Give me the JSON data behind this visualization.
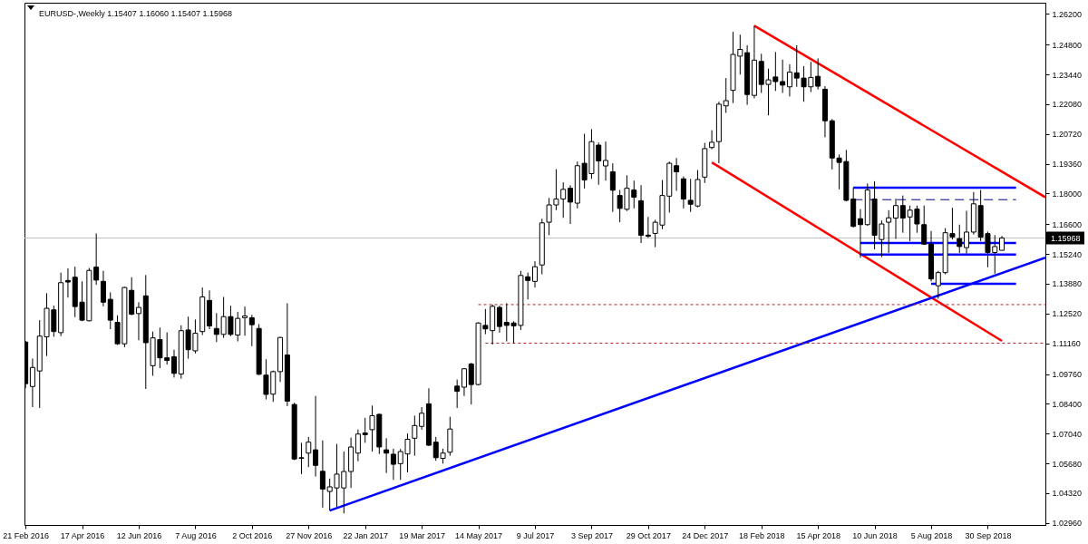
{
  "chart_data": {
    "type": "candlestick",
    "title": "EURUSD-,Weekly 1.15407 1.16060 1.15407 1.15968",
    "color": "#000000",
    "x": [
      "2016-02-21",
      "2016-02-28",
      "2016-03-06",
      "2016-03-13",
      "2016-03-20",
      "2016-03-27",
      "2016-04-03",
      "2016-04-10",
      "2016-04-17",
      "2016-04-24",
      "2016-05-01",
      "2016-05-08",
      "2016-05-15",
      "2016-05-22",
      "2016-05-29",
      "2016-06-05",
      "2016-06-12",
      "2016-06-19",
      "2016-06-26",
      "2016-07-03",
      "2016-07-10",
      "2016-07-17",
      "2016-07-24",
      "2016-07-31",
      "2016-08-07",
      "2016-08-14",
      "2016-08-21",
      "2016-08-28",
      "2016-09-04",
      "2016-09-11",
      "2016-09-18",
      "2016-09-25",
      "2016-10-02",
      "2016-10-09",
      "2016-10-16",
      "2016-10-23",
      "2016-10-30",
      "2016-11-06",
      "2016-11-13",
      "2016-11-20",
      "2016-11-27",
      "2016-12-04",
      "2016-12-11",
      "2016-12-18",
      "2016-12-25",
      "2017-01-01",
      "2017-01-08",
      "2017-01-15",
      "2017-01-22",
      "2017-01-29",
      "2017-02-05",
      "2017-02-12",
      "2017-02-19",
      "2017-02-26",
      "2017-03-05",
      "2017-03-12",
      "2017-03-19",
      "2017-03-26",
      "2017-04-02",
      "2017-04-09",
      "2017-04-16",
      "2017-04-23",
      "2017-04-30",
      "2017-05-07",
      "2017-05-14",
      "2017-05-21",
      "2017-05-28",
      "2017-06-04",
      "2017-06-11",
      "2017-06-18",
      "2017-06-25",
      "2017-07-02",
      "2017-07-09",
      "2017-07-16",
      "2017-07-23",
      "2017-07-30",
      "2017-08-06",
      "2017-08-13",
      "2017-08-20",
      "2017-08-27",
      "2017-09-03",
      "2017-09-10",
      "2017-09-17",
      "2017-09-24",
      "2017-10-01",
      "2017-10-08",
      "2017-10-15",
      "2017-10-22",
      "2017-10-29",
      "2017-11-05",
      "2017-11-12",
      "2017-11-19",
      "2017-11-26",
      "2017-12-03",
      "2017-12-10",
      "2017-12-17",
      "2017-12-24",
      "2017-12-31",
      "2018-01-07",
      "2018-01-14",
      "2018-01-21",
      "2018-01-28",
      "2018-02-04",
      "2018-02-11",
      "2018-02-18",
      "2018-02-25",
      "2018-03-04",
      "2018-03-11",
      "2018-03-18",
      "2018-03-25",
      "2018-04-01",
      "2018-04-08",
      "2018-04-15",
      "2018-04-22",
      "2018-04-29",
      "2018-05-06",
      "2018-05-13",
      "2018-05-20",
      "2018-05-27",
      "2018-06-03",
      "2018-06-10",
      "2018-06-17",
      "2018-06-24",
      "2018-07-01",
      "2018-07-08",
      "2018-07-15",
      "2018-07-22",
      "2018-07-29",
      "2018-08-05",
      "2018-08-12",
      "2018-08-19",
      "2018-08-26",
      "2018-09-02",
      "2018-09-09",
      "2018-09-16",
      "2018-09-23",
      "2018-09-30",
      "2018-10-07",
      "2018-10-14"
    ],
    "ohlc": [
      [
        1.1122,
        1.1127,
        1.0911,
        1.0932
      ],
      [
        1.0919,
        1.1047,
        1.0825,
        1.1006
      ],
      [
        1.099,
        1.1222,
        1.0821,
        1.1149
      ],
      [
        1.1146,
        1.1345,
        1.1058,
        1.1276
      ],
      [
        1.1269,
        1.1288,
        1.1146,
        1.117
      ],
      [
        1.1165,
        1.1439,
        1.1149,
        1.1393
      ],
      [
        1.1403,
        1.1458,
        1.1325,
        1.1396
      ],
      [
        1.1418,
        1.1466,
        1.1236,
        1.1284
      ],
      [
        1.1304,
        1.1399,
        1.1217,
        1.1222
      ],
      [
        1.1219,
        1.146,
        1.1217,
        1.1449
      ],
      [
        1.1464,
        1.1618,
        1.1383,
        1.1405
      ],
      [
        1.1399,
        1.1447,
        1.1285,
        1.1304
      ],
      [
        1.1317,
        1.1349,
        1.1181,
        1.1222
      ],
      [
        1.1212,
        1.1244,
        1.1109,
        1.1114
      ],
      [
        1.1114,
        1.1374,
        1.1098,
        1.1371
      ],
      [
        1.1358,
        1.1418,
        1.1244,
        1.1249
      ],
      [
        1.1252,
        1.1304,
        1.113,
        1.128
      ],
      [
        1.1333,
        1.1428,
        1.0908,
        1.1119
      ],
      [
        1.1014,
        1.117,
        1.0968,
        1.1141
      ],
      [
        1.1133,
        1.1188,
        1.1003,
        1.105
      ],
      [
        1.105,
        1.1166,
        1.1019,
        1.1038
      ],
      [
        1.1055,
        1.1087,
        1.096,
        1.0979
      ],
      [
        1.0976,
        1.1198,
        1.0955,
        1.1174
      ],
      [
        1.1177,
        1.1238,
        1.1046,
        1.1087
      ],
      [
        1.1082,
        1.1225,
        1.107,
        1.1162
      ],
      [
        1.117,
        1.1371,
        1.1154,
        1.1328
      ],
      [
        1.1312,
        1.1358,
        1.1181,
        1.1196
      ],
      [
        1.1184,
        1.1254,
        1.1122,
        1.1157
      ],
      [
        1.1157,
        1.1328,
        1.1141,
        1.1238
      ],
      [
        1.1238,
        1.1288,
        1.1149,
        1.1157
      ],
      [
        1.1154,
        1.126,
        1.1125,
        1.123
      ],
      [
        1.1233,
        1.1284,
        1.1151,
        1.1241
      ],
      [
        1.1233,
        1.1246,
        1.1103,
        1.1201
      ],
      [
        1.1184,
        1.1204,
        1.0971,
        1.0975
      ],
      [
        1.0971,
        1.1043,
        1.086,
        1.0883
      ],
      [
        1.0884,
        1.0992,
        1.0849,
        1.0987
      ],
      [
        1.0987,
        1.1145,
        1.094,
        1.1143
      ],
      [
        1.1063,
        1.1299,
        1.0829,
        1.0852
      ],
      [
        1.0837,
        1.0845,
        1.0583,
        1.0588
      ],
      [
        1.0594,
        1.0662,
        1.0519,
        1.0591
      ],
      [
        1.0615,
        1.0689,
        1.0551,
        1.0665
      ],
      [
        1.063,
        1.0876,
        1.0508,
        1.0559
      ],
      [
        1.0532,
        1.0673,
        1.0366,
        1.0451
      ],
      [
        1.044,
        1.0499,
        1.0353,
        1.0461
      ],
      [
        1.0456,
        1.0657,
        1.0369,
        1.0519
      ],
      [
        1.0456,
        1.0622,
        1.034,
        1.0531
      ],
      [
        1.0531,
        1.0686,
        1.0456,
        1.0643
      ],
      [
        1.0615,
        1.0723,
        1.0578,
        1.0702
      ],
      [
        1.0707,
        1.0776,
        1.0662,
        1.0699
      ],
      [
        1.0722,
        1.0832,
        1.0622,
        1.0786
      ],
      [
        1.0792,
        1.0795,
        1.0611,
        1.0643
      ],
      [
        1.063,
        1.0683,
        1.0524,
        1.0615
      ],
      [
        1.061,
        1.0635,
        1.0493,
        1.0564
      ],
      [
        1.0567,
        1.0634,
        1.0493,
        1.0622
      ],
      [
        1.0611,
        1.0705,
        1.0527,
        1.0678
      ],
      [
        1.0683,
        1.0786,
        1.0603,
        1.0741
      ],
      [
        1.0737,
        1.0825,
        1.0722,
        1.0797
      ],
      [
        1.084,
        1.0911,
        1.0648,
        1.0651
      ],
      [
        1.0665,
        1.0689,
        1.058,
        1.0594
      ],
      [
        1.0591,
        1.0635,
        1.0567,
        1.0615
      ],
      [
        1.0619,
        1.0781,
        1.0603,
        1.0725
      ],
      [
        1.0921,
        1.0951,
        1.0821,
        1.0897
      ],
      [
        1.0916,
        1.1003,
        1.0876,
        1.1
      ],
      [
        1.1022,
        1.1027,
        1.0837,
        1.0928
      ],
      [
        1.0928,
        1.1212,
        1.0924,
        1.1209
      ],
      [
        1.1198,
        1.1273,
        1.1158,
        1.1182
      ],
      [
        1.1174,
        1.1293,
        1.1111,
        1.1285
      ],
      [
        1.128,
        1.1288,
        1.1165,
        1.1193
      ],
      [
        1.1212,
        1.1299,
        1.1125,
        1.1198
      ],
      [
        1.1209,
        1.1217,
        1.1117,
        1.1196
      ],
      [
        1.1198,
        1.1447,
        1.1177,
        1.1426
      ],
      [
        1.142,
        1.1439,
        1.1317,
        1.1403
      ],
      [
        1.1399,
        1.1491,
        1.1371,
        1.1466
      ],
      [
        1.1474,
        1.1685,
        1.1431,
        1.1666
      ],
      [
        1.1669,
        1.178,
        1.161,
        1.1748
      ],
      [
        1.1748,
        1.1911,
        1.1724,
        1.1775
      ],
      [
        1.1775,
        1.1851,
        1.1689,
        1.1819
      ],
      [
        1.1824,
        1.1838,
        1.1661,
        1.1761
      ],
      [
        1.1756,
        1.1946,
        1.1732,
        1.1927
      ],
      [
        1.1938,
        1.2073,
        1.1823,
        1.1862
      ],
      [
        1.1891,
        1.2094,
        1.1867,
        1.2037
      ],
      [
        1.2021,
        1.2033,
        1.184,
        1.1949
      ],
      [
        1.1926,
        1.2037,
        1.1859,
        1.1951
      ],
      [
        1.1899,
        1.1938,
        1.1716,
        1.1815
      ],
      [
        1.1791,
        1.1816,
        1.1669,
        1.1732
      ],
      [
        1.1728,
        1.1883,
        1.172,
        1.1824
      ],
      [
        1.1816,
        1.1859,
        1.1732,
        1.1783
      ],
      [
        1.1767,
        1.1838,
        1.1574,
        1.1609
      ],
      [
        1.161,
        1.1693,
        1.1598,
        1.1605
      ],
      [
        1.1618,
        1.168,
        1.1555,
        1.1669
      ],
      [
        1.1656,
        1.1862,
        1.1637,
        1.1791
      ],
      [
        1.1788,
        1.1946,
        1.1713,
        1.1938
      ],
      [
        1.1927,
        1.1962,
        1.1812,
        1.1899
      ],
      [
        1.1867,
        1.1878,
        1.1732,
        1.1775
      ],
      [
        1.1769,
        1.1867,
        1.1716,
        1.1751
      ],
      [
        1.1743,
        1.1907,
        1.1737,
        1.1864
      ],
      [
        1.1875,
        1.2031,
        1.1848,
        1.2005
      ],
      [
        1.201,
        1.2089,
        1.2002,
        1.2034
      ],
      [
        1.2037,
        1.2219,
        1.1938,
        1.2208
      ],
      [
        1.22,
        1.2327,
        1.2168,
        1.2224
      ],
      [
        1.2271,
        1.2538,
        1.2213,
        1.2435
      ],
      [
        1.2427,
        1.2525,
        1.2343,
        1.2458
      ],
      [
        1.2443,
        1.2477,
        1.2205,
        1.2252
      ],
      [
        1.2248,
        1.2566,
        1.2235,
        1.2409
      ],
      [
        1.2403,
        1.2438,
        1.2259,
        1.2298
      ],
      [
        1.2298,
        1.237,
        1.2157,
        1.2319
      ],
      [
        1.2332,
        1.2446,
        1.2268,
        1.2311
      ],
      [
        1.2311,
        1.2411,
        1.2259,
        1.2295
      ],
      [
        1.2287,
        1.239,
        1.2243,
        1.2354
      ],
      [
        1.2351,
        1.2477,
        1.2287,
        1.2327
      ],
      [
        1.2327,
        1.2382,
        1.2219,
        1.2287
      ],
      [
        1.2287,
        1.2401,
        1.2263,
        1.233
      ],
      [
        1.2335,
        1.2417,
        1.2275,
        1.229
      ],
      [
        1.2276,
        1.229,
        1.2057,
        1.2132
      ],
      [
        1.2132,
        1.214,
        1.191,
        1.1962
      ],
      [
        1.1962,
        1.1978,
        1.1819,
        1.1942
      ],
      [
        1.1946,
        1.1999,
        1.1764,
        1.1769
      ],
      [
        1.1775,
        1.1827,
        1.1645,
        1.165
      ],
      [
        1.1685,
        1.1729,
        1.1507,
        1.1658
      ],
      [
        1.1658,
        1.1846,
        1.1653,
        1.1816
      ],
      [
        1.1775,
        1.1856,
        1.1545,
        1.1609
      ],
      [
        1.159,
        1.1677,
        1.151,
        1.1661
      ],
      [
        1.1669,
        1.1724,
        1.1529,
        1.1689
      ],
      [
        1.1688,
        1.1777,
        1.1593,
        1.1745
      ],
      [
        1.1745,
        1.1791,
        1.1621,
        1.1688
      ],
      [
        1.1693,
        1.1745,
        1.1582,
        1.1724
      ],
      [
        1.1729,
        1.1745,
        1.1621,
        1.1661
      ],
      [
        1.1658,
        1.1745,
        1.1566,
        1.1569
      ],
      [
        1.1569,
        1.1629,
        1.1399,
        1.141
      ],
      [
        1.1379,
        1.1447,
        1.132,
        1.1439
      ],
      [
        1.1439,
        1.1642,
        1.1431,
        1.1621
      ],
      [
        1.1617,
        1.1735,
        1.159,
        1.1602
      ],
      [
        1.1594,
        1.1658,
        1.1529,
        1.1558
      ],
      [
        1.1553,
        1.1721,
        1.1526,
        1.1624
      ],
      [
        1.1624,
        1.1807,
        1.1613,
        1.1753
      ],
      [
        1.1745,
        1.1816,
        1.1582,
        1.1601
      ],
      [
        1.1617,
        1.1626,
        1.1463,
        1.1531
      ],
      [
        1.1531,
        1.161,
        1.1434,
        1.1558
      ],
      [
        1.15407,
        1.1606,
        1.15407,
        1.15968
      ]
    ],
    "xlim": [
      "2016-02-20",
      "2018-11-26"
    ],
    "xticks": [
      {
        "value": "2016-02-21",
        "label": "21 Feb 2016"
      },
      {
        "value": "2016-04-17",
        "label": "17 Apr 2016"
      },
      {
        "value": "2016-06-12",
        "label": "12 Jun 2016"
      },
      {
        "value": "2016-08-07",
        "label": "7 Aug 2016"
      },
      {
        "value": "2016-10-02",
        "label": "2 Oct 2016"
      },
      {
        "value": "2016-11-27",
        "label": "27 Nov 2016"
      },
      {
        "value": "2017-01-22",
        "label": "22 Jan 2017"
      },
      {
        "value": "2017-03-19",
        "label": "19 Mar 2017"
      },
      {
        "value": "2017-05-14",
        "label": "14 May 2017"
      },
      {
        "value": "2017-07-09",
        "label": "9 Jul 2017"
      },
      {
        "value": "2017-09-03",
        "label": "3 Sep 2017"
      },
      {
        "value": "2017-10-29",
        "label": "29 Oct 2017"
      },
      {
        "value": "2017-12-24",
        "label": "24 Dec 2017"
      },
      {
        "value": "2018-02-18",
        "label": "18 Feb 2018"
      },
      {
        "value": "2018-04-15",
        "label": "15 Apr 2018"
      },
      {
        "value": "2018-06-10",
        "label": "10 Jun 2018"
      },
      {
        "value": "2018-08-05",
        "label": "5 Aug 2018"
      },
      {
        "value": "2018-09-30",
        "label": "30 Sep 2018"
      }
    ],
    "ylim": [
      1.0287,
      1.2671
    ],
    "yticks": [
      {
        "value": 1.0296,
        "label": "1.02960"
      },
      {
        "value": 1.0432,
        "label": "1.04320"
      },
      {
        "value": 1.0568,
        "label": "1.05680"
      },
      {
        "value": 1.0704,
        "label": "1.07040"
      },
      {
        "value": 1.084,
        "label": "1.08400"
      },
      {
        "value": 1.0976,
        "label": "1.09760"
      },
      {
        "value": 1.1116,
        "label": "1.11160"
      },
      {
        "value": 1.1252,
        "label": "1.12520"
      },
      {
        "value": 1.1388,
        "label": "1.13880"
      },
      {
        "value": 1.1524,
        "label": "1.15240"
      },
      {
        "value": 1.166,
        "label": "1.16600"
      },
      {
        "value": 1.18,
        "label": "1.18000"
      },
      {
        "value": 1.1936,
        "label": "1.19360"
      },
      {
        "value": 1.2072,
        "label": "1.20720"
      },
      {
        "value": 1.2208,
        "label": "1.22080"
      },
      {
        "value": 1.2344,
        "label": "1.23440"
      },
      {
        "value": 1.248,
        "label": "1.24800"
      },
      {
        "value": 1.262,
        "label": "1.26200"
      }
    ],
    "series": [
      {
        "type": "line",
        "x": [
          "2018-02-11",
          "2018-11-26"
        ],
        "values": [
          1.2566,
          1.1783
        ],
        "color": "#ff0000"
      },
      {
        "type": "line",
        "x": [
          "2017-12-31",
          "2018-10-14"
        ],
        "values": [
          1.1942,
          1.1127
        ],
        "color": "#ff0000"
      },
      {
        "type": "line",
        "x": [
          "2016-12-18",
          "2018-11-26"
        ],
        "values": [
          1.0353,
          1.1507
        ],
        "color": "#0000ff"
      },
      {
        "type": "line",
        "x": [
          "2018-05-20",
          "2018-10-28"
        ],
        "values": [
          1.1827,
          1.1827
        ],
        "color": "#0000ff"
      },
      {
        "type": "line",
        "x": [
          "2018-05-20",
          "2018-10-28"
        ],
        "values": [
          1.1772,
          1.1772
        ],
        "color": "#000080",
        "line_style": "dashed"
      },
      {
        "type": "line",
        "x": [
          "2018-05-27",
          "2018-10-28"
        ],
        "values": [
          1.1574,
          1.1574
        ],
        "color": "#0000ff"
      },
      {
        "type": "line",
        "x": [
          "2018-05-27",
          "2018-10-28"
        ],
        "values": [
          1.1521,
          1.1521
        ],
        "color": "#0000ff"
      },
      {
        "type": "line",
        "x": [
          "2018-08-05",
          "2018-10-28"
        ],
        "values": [
          1.1388,
          1.1388
        ],
        "color": "#0000ff"
      },
      {
        "type": "line",
        "x": [
          "2017-05-14",
          "2018-11-26"
        ],
        "values": [
          1.1293,
          1.1293
        ],
        "color": "#b22222",
        "line_style": "dotted"
      },
      {
        "type": "line",
        "x": [
          "2017-05-21",
          "2018-11-26"
        ],
        "values": [
          1.1117,
          1.1117
        ],
        "color": "#b22222",
        "line_style": "dotted"
      }
    ],
    "ref_lines": [
      {
        "axis": "y",
        "value": 1.15968,
        "label": "1.15968",
        "color": "#c0c0c0"
      }
    ]
  }
}
